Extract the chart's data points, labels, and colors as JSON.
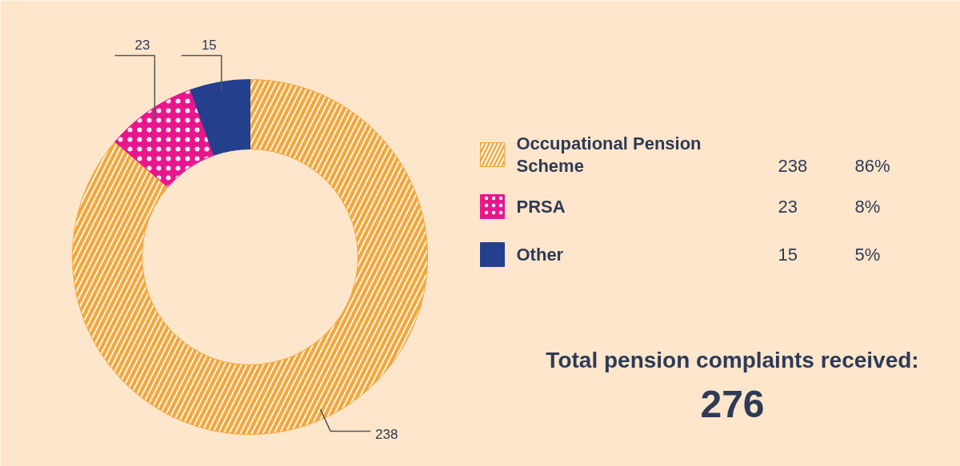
{
  "chart_data": {
    "type": "donut",
    "categories": [
      "Occupational Pension Scheme",
      "PRSA",
      "Other"
    ],
    "values": [
      238,
      23,
      15
    ],
    "colors": [
      "#f4a63a",
      "#e8168c",
      "#243f8c"
    ],
    "data_labels": true,
    "legend": "right",
    "annotations": [
      "Total pension complaints received:",
      "276",
      {
        "text": "238",
        "x": "Occupational Pension Scheme"
      },
      {
        "text": "86%",
        "x": "Occupational Pension Scheme"
      },
      {
        "text": "23",
        "x": "PRSA"
      },
      {
        "text": "8%",
        "x": "PRSA"
      },
      {
        "text": "15",
        "x": "Other"
      },
      {
        "text": "5%",
        "x": "Other"
      }
    ]
  }
}
